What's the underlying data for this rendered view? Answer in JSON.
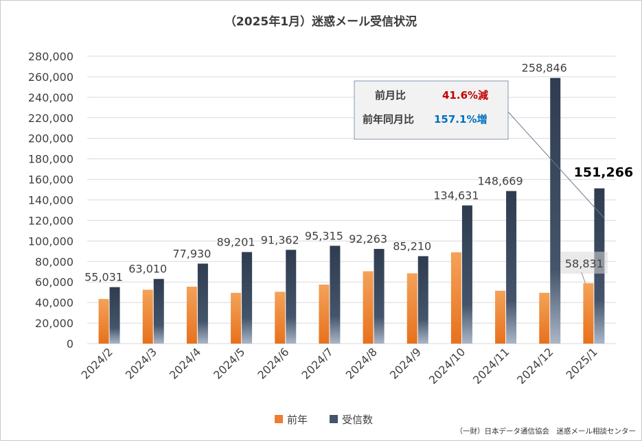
{
  "chart_data": {
    "type": "bar",
    "title": "（2025年1月）迷惑メール受信状況",
    "categories": [
      "2024/2",
      "2024/3",
      "2024/4",
      "2024/5",
      "2024/6",
      "2024/7",
      "2024/8",
      "2024/9",
      "2024/10",
      "2024/11",
      "2024/12",
      "2025/1"
    ],
    "series": [
      {
        "name": "前年",
        "color": "#ed7d31",
        "values": [
          43500,
          52500,
          55500,
          49500,
          50500,
          57500,
          70500,
          68500,
          89000,
          51500,
          49500,
          58831
        ]
      },
      {
        "name": "受信数",
        "color": "#44546a",
        "values": [
          55031,
          63010,
          77930,
          89201,
          91362,
          95315,
          92263,
          85210,
          134631,
          148669,
          258846,
          151266
        ]
      }
    ],
    "data_labels": [
      "55,031",
      "63,010",
      "77,930",
      "89,201",
      "91,362",
      "95,315",
      "92,263",
      "85,210",
      "134,631",
      "148,669",
      "258,846",
      "151,266"
    ],
    "prev_year_label": "58,831",
    "ylim": [
      0,
      280000
    ],
    "ytick_labels": [
      "0",
      "20,000",
      "40,000",
      "60,000",
      "80,000",
      "100,000",
      "120,000",
      "140,000",
      "160,000",
      "180,000",
      "200,000",
      "220,000",
      "240,000",
      "260,000",
      "280,000"
    ],
    "grid": true,
    "legend_position": "bottom",
    "xlabel": "",
    "ylabel": ""
  },
  "annotation": {
    "mom_label": "前月比",
    "mom_value": "41.6%減",
    "yoy_label": "前年同月比",
    "yoy_value": "157.1%増"
  },
  "source": "（一財）日本データ通信協会　迷惑メール相談センター"
}
